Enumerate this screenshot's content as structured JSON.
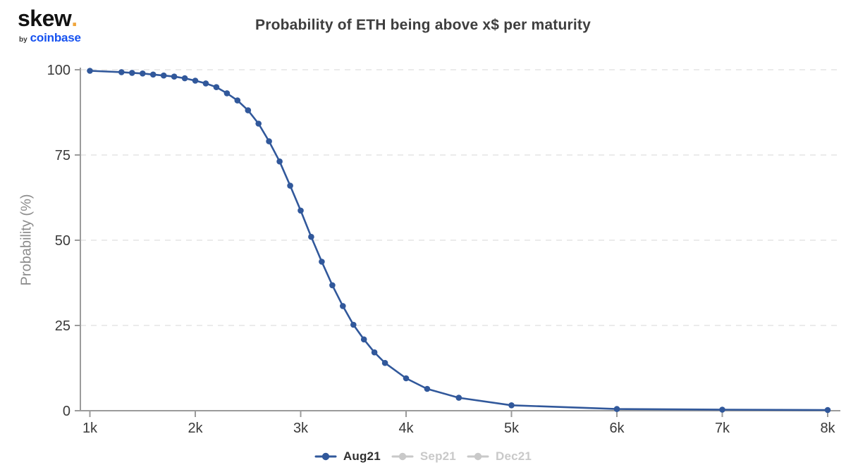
{
  "header": {
    "logo": {
      "brand": "skew",
      "dot": ".",
      "byline_prefix": "by",
      "byline_brand": "coinbase"
    },
    "title": "Probability of ETH being above x$ per maturity"
  },
  "chart_data": {
    "type": "line",
    "title": "Probability of ETH being above x$ per maturity",
    "xlabel": "",
    "ylabel": "Probability (%)",
    "xlim": [
      1000,
      8000
    ],
    "ylim": [
      0,
      100
    ],
    "x_tick_values": [
      1000,
      2000,
      3000,
      4000,
      5000,
      6000,
      7000,
      8000
    ],
    "x_tick_labels": [
      "1k",
      "2k",
      "3k",
      "4k",
      "5k",
      "6k",
      "7k",
      "8k"
    ],
    "y_tick_values": [
      0,
      25,
      50,
      75,
      100
    ],
    "grid": "horizontal dashed gridlines at 25/50/75/100, no vertical gridlines",
    "legend_position": "bottom-center",
    "series": [
      {
        "name": "Aug21",
        "color": "#31589B",
        "active": true,
        "marker": "circle",
        "x": [
          1000,
          1300,
          1400,
          1500,
          1600,
          1700,
          1800,
          1900,
          2000,
          2100,
          2200,
          2300,
          2400,
          2500,
          2600,
          2700,
          2800,
          2900,
          3000,
          3100,
          3200,
          3300,
          3400,
          3500,
          3600,
          3700,
          3800,
          4000,
          4200,
          4500,
          5000,
          6000,
          7000,
          8000
        ],
        "y": [
          99.7,
          99.3,
          99.1,
          98.9,
          98.6,
          98.3,
          98.0,
          97.5,
          96.8,
          96.0,
          94.9,
          93.1,
          91.0,
          88.1,
          84.2,
          79.0,
          73.1,
          66.0,
          58.7,
          51.0,
          43.7,
          36.8,
          30.7,
          25.2,
          20.9,
          17.1,
          14.0,
          9.5,
          6.4,
          3.8,
          1.6,
          0.5,
          0.3,
          0.2
        ]
      },
      {
        "name": "Sep21",
        "color": "#C9C9C9",
        "active": false,
        "marker": "circle"
      },
      {
        "name": "Dec21",
        "color": "#C9C9C9",
        "active": false,
        "marker": "circle"
      }
    ]
  },
  "legend": {
    "items": [
      {
        "label": "Aug21",
        "active": true
      },
      {
        "label": "Sep21",
        "active": false
      },
      {
        "label": "Dec21",
        "active": false
      }
    ]
  },
  "colors": {
    "series_blue": "#31589B",
    "legend_disabled": "#C9C9C9",
    "legend_active_text": "#2F2F2F",
    "coinbase_blue": "#1652F0",
    "skew_dot_orange": "#F0A63C",
    "axis_line": "#9B9B9B",
    "grid_line": "#EBEBEB",
    "tick_text": "#3A3A3A",
    "axis_title_text": "#8C8C8C",
    "title_text": "#3E3E3E",
    "background": "#FFFFFF"
  }
}
